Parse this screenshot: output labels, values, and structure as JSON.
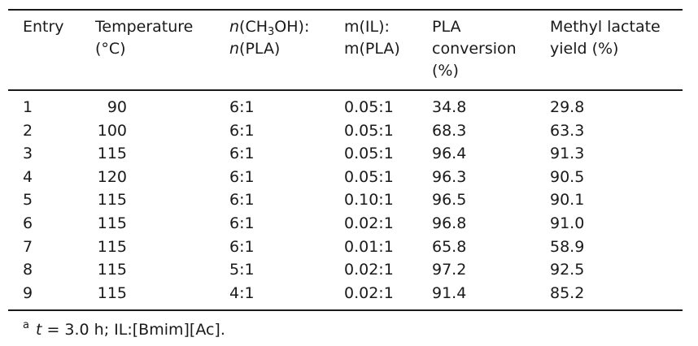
{
  "table": {
    "headers": {
      "entry": "Entry",
      "temperature": [
        "Temperature",
        "(°C)"
      ],
      "ratio_methanol": {
        "n": "n",
        "open": "(CH",
        "sub": "3",
        "close": "OH):",
        "n2": "n",
        "line2": "(PLA)"
      },
      "ratio_il": [
        "m(IL):",
        "m(PLA)"
      ],
      "conversion": [
        "PLA",
        "conversion",
        "(%)"
      ],
      "yield": [
        "Methyl lactate",
        "yield (%)"
      ]
    },
    "rows": [
      {
        "entry": "1",
        "temperature": "90",
        "n_ratio": "6:1",
        "m_ratio": "0.05:1",
        "conversion": "34.8",
        "yield": "29.8"
      },
      {
        "entry": "2",
        "temperature": "100",
        "n_ratio": "6:1",
        "m_ratio": "0.05:1",
        "conversion": "68.3",
        "yield": "63.3"
      },
      {
        "entry": "3",
        "temperature": "115",
        "n_ratio": "6:1",
        "m_ratio": "0.05:1",
        "conversion": "96.4",
        "yield": "91.3"
      },
      {
        "entry": "4",
        "temperature": "120",
        "n_ratio": "6:1",
        "m_ratio": "0.05:1",
        "conversion": "96.3",
        "yield": "90.5"
      },
      {
        "entry": "5",
        "temperature": "115",
        "n_ratio": "6:1",
        "m_ratio": "0.10:1",
        "conversion": "96.5",
        "yield": "90.1"
      },
      {
        "entry": "6",
        "temperature": "115",
        "n_ratio": "6:1",
        "m_ratio": "0.02:1",
        "conversion": "96.8",
        "yield": "91.0"
      },
      {
        "entry": "7",
        "temperature": "115",
        "n_ratio": "6:1",
        "m_ratio": "0.01:1",
        "conversion": "65.8",
        "yield": "58.9"
      },
      {
        "entry": "8",
        "temperature": "115",
        "n_ratio": "5:1",
        "m_ratio": "0.02:1",
        "conversion": "97.2",
        "yield": "92.5"
      },
      {
        "entry": "9",
        "temperature": "115",
        "n_ratio": "4:1",
        "m_ratio": "0.02:1",
        "conversion": "91.4",
        "yield": "85.2"
      }
    ]
  },
  "footnote": {
    "marker": "a",
    "var": "t",
    "text": " = 3.0 h; IL:[Bmim][Ac]."
  }
}
